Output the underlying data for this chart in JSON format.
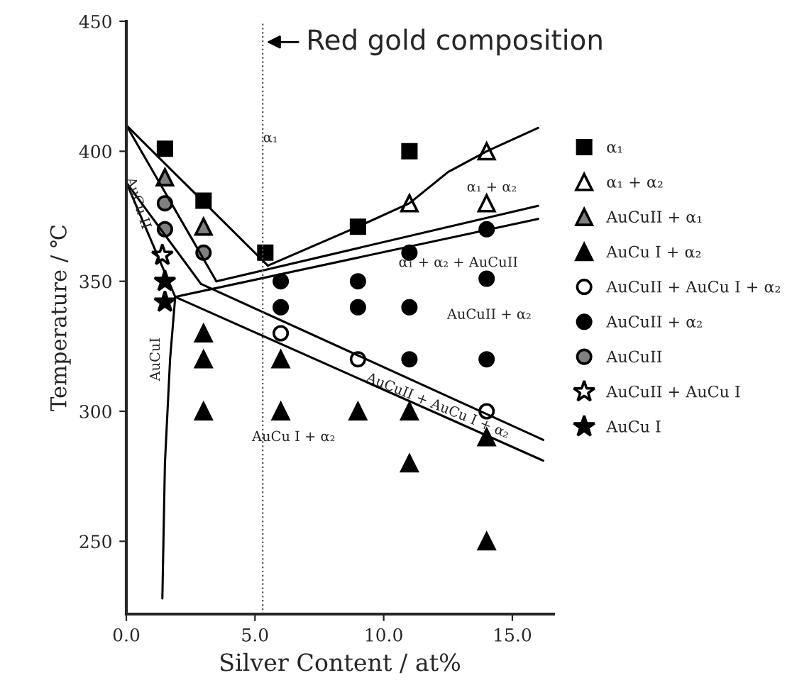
{
  "chart_data": {
    "type": "scatter",
    "xlabel": "Silver Content / at%",
    "ylabel": "Temperature / ℃",
    "xlim": [
      0,
      16.6
    ],
    "ylim": [
      222,
      450
    ],
    "xticks": [
      {
        "value": 0,
        "label": "0.0"
      },
      {
        "value": 5,
        "label": "5.0"
      },
      {
        "value": 10,
        "label": "10.0"
      },
      {
        "value": 15,
        "label": "15.0"
      }
    ],
    "yticks": [
      250,
      300,
      350,
      400,
      450
    ],
    "grid": false,
    "legend": "right",
    "ref_lines": [
      {
        "axis": "x",
        "value": 5.3,
        "label": null,
        "color": "#555555",
        "line_style": "dotted"
      }
    ],
    "annotations": [
      "α₁",
      "α₁ + α₂",
      "α₁ + α₂ + AuCuII",
      "AuCuII + α₂",
      "AuCu I + α₂",
      {
        "text": "AuCuII + AuCu I + α₂",
        "x": 12.1,
        "y": 302
      },
      {
        "text": "AuCu II",
        "x": 0.45,
        "y": 380
      },
      "AuCuI",
      {
        "text": "Red gold composition",
        "x": 5.3,
        "y": 442
      }
    ],
    "series": [
      {
        "name": "α₁",
        "color": "#000000",
        "marker": "square",
        "x": [
          1.5,
          3,
          5.4,
          9,
          11
        ],
        "values": [
          401,
          381,
          361,
          371,
          400
        ]
      },
      {
        "name": "α₁ + α₂",
        "color": "#ffffff",
        "marker": "triangle",
        "x": [
          11,
          14,
          14
        ],
        "values": [
          380,
          400,
          380
        ]
      },
      {
        "name": "AuCuII + α₁",
        "color": "#808080",
        "marker": "triangle",
        "x": [
          1.5,
          3
        ],
        "values": [
          390,
          371
        ]
      },
      {
        "name": "AuCu I + α₂",
        "color": "#000000",
        "marker": "triangle",
        "x": [
          3,
          3,
          3,
          6,
          6,
          9,
          11,
          11,
          14,
          14
        ],
        "values": [
          330,
          320,
          300,
          320,
          300,
          300,
          300,
          280,
          290,
          250
        ]
      },
      {
        "name": "AuCuII + AuCu I + α₂",
        "color": "#ffffff",
        "marker": "circle",
        "x": [
          6,
          9,
          14
        ],
        "values": [
          330,
          320,
          300
        ]
      },
      {
        "name": "AuCuII + α₂",
        "color": "#000000",
        "marker": "circle",
        "x": [
          6,
          6,
          9,
          9,
          11,
          11,
          11,
          14,
          14,
          14
        ],
        "values": [
          350,
          340,
          350,
          340,
          361,
          340,
          320,
          370,
          351,
          320
        ]
      },
      {
        "name": "AuCuII",
        "color": "#808080",
        "marker": "circle",
        "x": [
          1.5,
          1.5,
          3
        ],
        "values": [
          380,
          370,
          361
        ]
      },
      {
        "name": "AuCuII + AuCu I",
        "color": "#ffffff",
        "marker": "star",
        "x": [
          1.4
        ],
        "values": [
          360
        ]
      },
      {
        "name": "AuCu I",
        "color": "#000000",
        "marker": "star",
        "x": [
          1.5,
          1.5
        ],
        "values": [
          350,
          342
        ]
      },
      {
        "type": "line",
        "color": "#000000",
        "marker": "none",
        "x": [
          0,
          5.5
        ],
        "values": [
          410,
          356
        ]
      },
      {
        "type": "line",
        "color": "#000000",
        "marker": "none",
        "x": [
          0,
          3.5
        ],
        "values": [
          410,
          350
        ]
      },
      {
        "type": "line",
        "color": "#000000",
        "marker": "none",
        "x": [
          0,
          1.9
        ],
        "values": [
          388,
          344
        ]
      },
      {
        "type": "line",
        "color": "#000000",
        "marker": "none",
        "x": [
          0,
          2.9
        ],
        "values": [
          388,
          349
        ]
      },
      {
        "type": "line",
        "color": "#000000",
        "marker": "none",
        "x": [
          5.5,
          9,
          11,
          12.5,
          14,
          16
        ],
        "values": [
          356,
          371,
          380,
          392,
          400,
          409
        ]
      },
      {
        "type": "line",
        "color": "#000000",
        "marker": "none",
        "x": [
          3.5,
          16
        ],
        "values": [
          350,
          379
        ]
      },
      {
        "type": "line",
        "color": "#000000",
        "marker": "none",
        "x": [
          1.9,
          16
        ],
        "values": [
          344,
          374
        ]
      },
      {
        "type": "line",
        "color": "#000000",
        "marker": "none",
        "x": [
          2.9,
          16.2
        ],
        "values": [
          349,
          289
        ]
      },
      {
        "type": "line",
        "color": "#000000",
        "marker": "none",
        "x": [
          1.9,
          16.2
        ],
        "values": [
          344,
          281
        ]
      },
      {
        "type": "line",
        "color": "#000000",
        "marker": "none",
        "x": [
          1.9,
          1.7,
          1.5,
          1.4
        ],
        "values": [
          344,
          320,
          280,
          228
        ]
      }
    ]
  }
}
